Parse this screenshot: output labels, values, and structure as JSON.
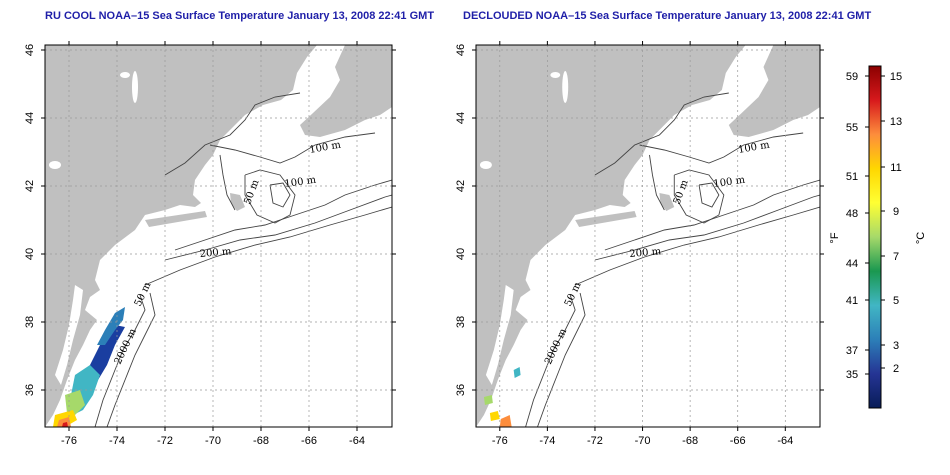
{
  "panels": [
    {
      "title": "RU COOL NOAA–15 Sea Surface Temperature January 13, 2008 22:41 GMT",
      "x_ticks": [
        "-76",
        "-74",
        "-72",
        "-70",
        "-68",
        "-66",
        "-64"
      ],
      "y_ticks": [
        "36",
        "38",
        "40",
        "42",
        "44",
        "46"
      ],
      "contour_labels": [
        "100 m",
        "100 m",
        "50 m",
        "200 m",
        "50 m",
        "2000 m"
      ]
    },
    {
      "title": "DECLOUDED NOAA–15 Sea Surface Temperature January 13, 2008 22:41 GMT",
      "x_ticks": [
        "-76",
        "-74",
        "-72",
        "-70",
        "-68",
        "-66",
        "-64"
      ],
      "y_ticks": [
        "36",
        "38",
        "40",
        "42",
        "44",
        "46"
      ],
      "contour_labels": [
        "100 m",
        "100 m",
        "50 m",
        "200 m",
        "50 m",
        "2000 m"
      ]
    }
  ],
  "colorbar": {
    "f_labels": [
      "59",
      "55",
      "51",
      "48",
      "44",
      "41",
      "37",
      "35"
    ],
    "c_labels": [
      "15",
      "13",
      "11",
      "9",
      "7",
      "5",
      "3",
      "2"
    ],
    "f_unit": "°F",
    "c_unit": "°C",
    "colors": [
      "#8b0000",
      "#d7191c",
      "#fd8d3c",
      "#ffd700",
      "#ffff33",
      "#a6d96a",
      "#1a9850",
      "#41b6c4",
      "#2c7fb8",
      "#253494",
      "#081d58"
    ]
  },
  "land_color": "#c0c0c0"
}
